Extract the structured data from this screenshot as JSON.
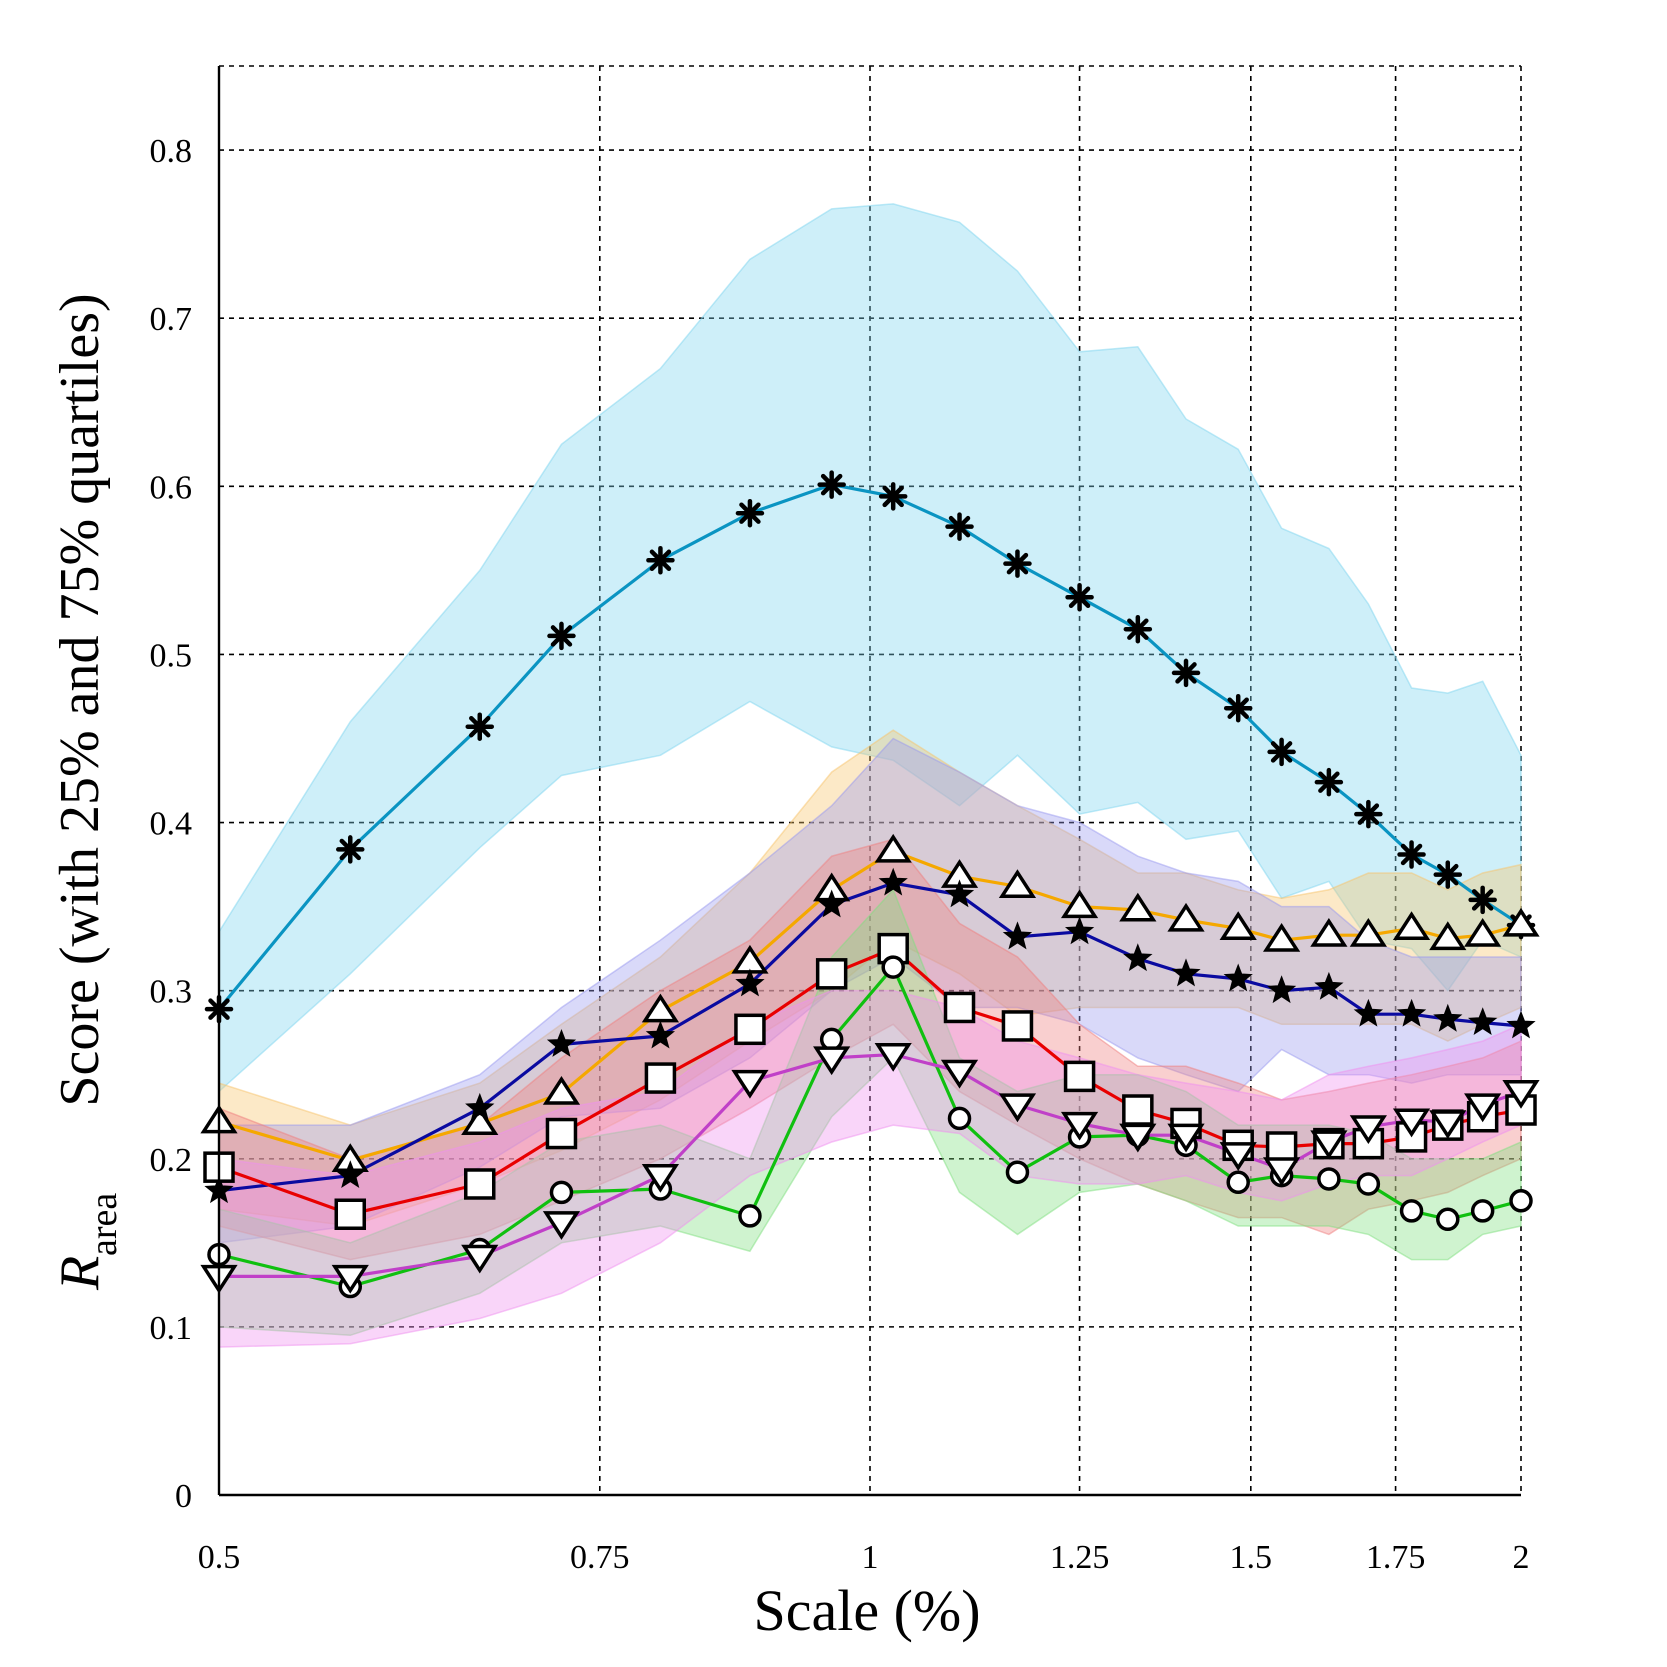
{
  "chart_data": {
    "type": "line",
    "title": "",
    "xlabel": "Scale (%)",
    "ylabel": "Score (with 25% and 75% quartiles)",
    "ylabel_prefix": "R",
    "ylabel_sub": "area",
    "x_scale": "log2",
    "xlim": [
      0.5,
      2
    ],
    "ylim": [
      0,
      0.85
    ],
    "grid": true,
    "x_ticks": [
      0.5,
      0.75,
      1,
      1.25,
      1.5,
      1.75,
      2
    ],
    "x_tick_labels": [
      "0.5",
      "0.75",
      "1",
      "1.25",
      "1.5",
      "1.75",
      "2"
    ],
    "y_ticks": [
      0,
      0.1,
      0.2,
      0.3,
      0.4,
      0.5,
      0.6,
      0.7,
      0.8
    ],
    "y_tick_labels": [
      "0",
      "0.1",
      "0.2",
      "0.3",
      "0.4",
      "0.5",
      "0.6",
      "0.7",
      "0.8"
    ],
    "x": [
      0.5,
      0.575,
      0.66,
      0.72,
      0.8,
      0.88,
      0.96,
      1.025,
      1.1,
      1.17,
      1.25,
      1.33,
      1.4,
      1.48,
      1.55,
      1.63,
      1.7,
      1.78,
      1.85,
      1.92,
      2.0
    ],
    "series": [
      {
        "marker": "asterisk",
        "color": "#0a94c2",
        "band_color": "#7fd6f0",
        "values": [
          0.289,
          0.384,
          0.457,
          0.511,
          0.556,
          0.584,
          0.601,
          0.594,
          0.576,
          0.554,
          0.534,
          0.515,
          0.489,
          0.468,
          0.442,
          0.424,
          0.405,
          0.381,
          0.369,
          0.354,
          0.339
        ],
        "q25": [
          0.24,
          0.31,
          0.385,
          0.428,
          0.44,
          0.472,
          0.445,
          0.437,
          0.41,
          0.44,
          0.405,
          0.412,
          0.39,
          0.395,
          0.355,
          0.365,
          0.33,
          0.325,
          0.3,
          0.33,
          0.32
        ],
        "q75": [
          0.335,
          0.46,
          0.55,
          0.625,
          0.67,
          0.735,
          0.765,
          0.768,
          0.757,
          0.728,
          0.68,
          0.683,
          0.64,
          0.622,
          0.575,
          0.563,
          0.53,
          0.48,
          0.477,
          0.484,
          0.44
        ]
      },
      {
        "marker": "triangle-up",
        "color": "#f5a800",
        "band_color": "#f7c46c",
        "values": [
          0.222,
          0.199,
          0.221,
          0.239,
          0.288,
          0.317,
          0.36,
          0.383,
          0.368,
          0.362,
          0.35,
          0.348,
          0.342,
          0.337,
          0.33,
          0.333,
          0.333,
          0.337,
          0.331,
          0.333,
          0.339
        ],
        "q25": [
          0.17,
          0.16,
          0.185,
          0.205,
          0.235,
          0.27,
          0.3,
          0.33,
          0.31,
          0.285,
          0.29,
          0.29,
          0.29,
          0.29,
          0.28,
          0.28,
          0.28,
          0.28,
          0.27,
          0.28,
          0.29
        ],
        "q75": [
          0.245,
          0.22,
          0.245,
          0.28,
          0.32,
          0.37,
          0.43,
          0.455,
          0.43,
          0.41,
          0.39,
          0.37,
          0.37,
          0.36,
          0.355,
          0.36,
          0.37,
          0.37,
          0.36,
          0.37,
          0.375
        ]
      },
      {
        "marker": "star",
        "color": "#0a0aa0",
        "band_color": "#9a9af0",
        "values": [
          0.181,
          0.19,
          0.23,
          0.268,
          0.273,
          0.304,
          0.351,
          0.364,
          0.357,
          0.332,
          0.335,
          0.319,
          0.31,
          0.307,
          0.3,
          0.302,
          0.286,
          0.286,
          0.283,
          0.281,
          0.279
        ],
        "q25": [
          0.15,
          0.16,
          0.195,
          0.225,
          0.23,
          0.26,
          0.3,
          0.32,
          0.29,
          0.29,
          0.28,
          0.26,
          0.25,
          0.24,
          0.265,
          0.25,
          0.25,
          0.245,
          0.25,
          0.25,
          0.25
        ],
        "q75": [
          0.22,
          0.22,
          0.25,
          0.29,
          0.33,
          0.37,
          0.41,
          0.45,
          0.43,
          0.41,
          0.4,
          0.38,
          0.37,
          0.365,
          0.35,
          0.35,
          0.33,
          0.32,
          0.32,
          0.32,
          0.32
        ]
      },
      {
        "marker": "square",
        "color": "#e80000",
        "band_color": "#f08080",
        "values": [
          0.195,
          0.167,
          0.185,
          0.215,
          0.248,
          0.277,
          0.31,
          0.325,
          0.29,
          0.279,
          0.249,
          0.229,
          0.221,
          0.208,
          0.207,
          0.209,
          0.209,
          0.213,
          0.22,
          0.225,
          0.229
        ],
        "q25": [
          0.16,
          0.14,
          0.155,
          0.175,
          0.2,
          0.23,
          0.26,
          0.28,
          0.24,
          0.22,
          0.2,
          0.185,
          0.175,
          0.165,
          0.165,
          0.155,
          0.17,
          0.175,
          0.18,
          0.19,
          0.2
        ],
        "q75": [
          0.23,
          0.2,
          0.22,
          0.26,
          0.3,
          0.33,
          0.38,
          0.39,
          0.34,
          0.32,
          0.28,
          0.255,
          0.255,
          0.245,
          0.235,
          0.24,
          0.245,
          0.25,
          0.255,
          0.26,
          0.27
        ]
      },
      {
        "marker": "circle",
        "color": "#10c010",
        "band_color": "#80e080",
        "values": [
          0.143,
          0.124,
          0.146,
          0.18,
          0.182,
          0.166,
          0.271,
          0.314,
          0.224,
          0.192,
          0.213,
          0.214,
          0.208,
          0.186,
          0.19,
          0.188,
          0.185,
          0.169,
          0.164,
          0.169,
          0.175
        ],
        "q25": [
          0.1,
          0.095,
          0.12,
          0.15,
          0.16,
          0.145,
          0.225,
          0.26,
          0.18,
          0.155,
          0.18,
          0.185,
          0.175,
          0.16,
          0.16,
          0.16,
          0.155,
          0.14,
          0.14,
          0.155,
          0.16
        ],
        "q75": [
          0.17,
          0.15,
          0.18,
          0.21,
          0.22,
          0.2,
          0.32,
          0.36,
          0.26,
          0.24,
          0.25,
          0.25,
          0.24,
          0.22,
          0.22,
          0.22,
          0.215,
          0.2,
          0.2,
          0.2,
          0.21
        ]
      },
      {
        "marker": "triangle-down",
        "color": "#c040c8",
        "band_color": "#f090f0",
        "values": [
          0.13,
          0.13,
          0.142,
          0.162,
          0.19,
          0.246,
          0.26,
          0.262,
          0.252,
          0.232,
          0.221,
          0.214,
          0.214,
          0.203,
          0.194,
          0.21,
          0.219,
          0.223,
          0.222,
          0.232,
          0.24
        ],
        "q25": [
          0.088,
          0.09,
          0.105,
          0.12,
          0.15,
          0.19,
          0.21,
          0.22,
          0.215,
          0.19,
          0.185,
          0.185,
          0.19,
          0.18,
          0.175,
          0.185,
          0.19,
          0.19,
          0.2,
          0.21,
          0.22
        ],
        "q75": [
          0.2,
          0.19,
          0.21,
          0.23,
          0.24,
          0.28,
          0.3,
          0.3,
          0.29,
          0.27,
          0.26,
          0.25,
          0.245,
          0.24,
          0.235,
          0.25,
          0.255,
          0.26,
          0.265,
          0.27,
          0.28
        ]
      }
    ]
  }
}
